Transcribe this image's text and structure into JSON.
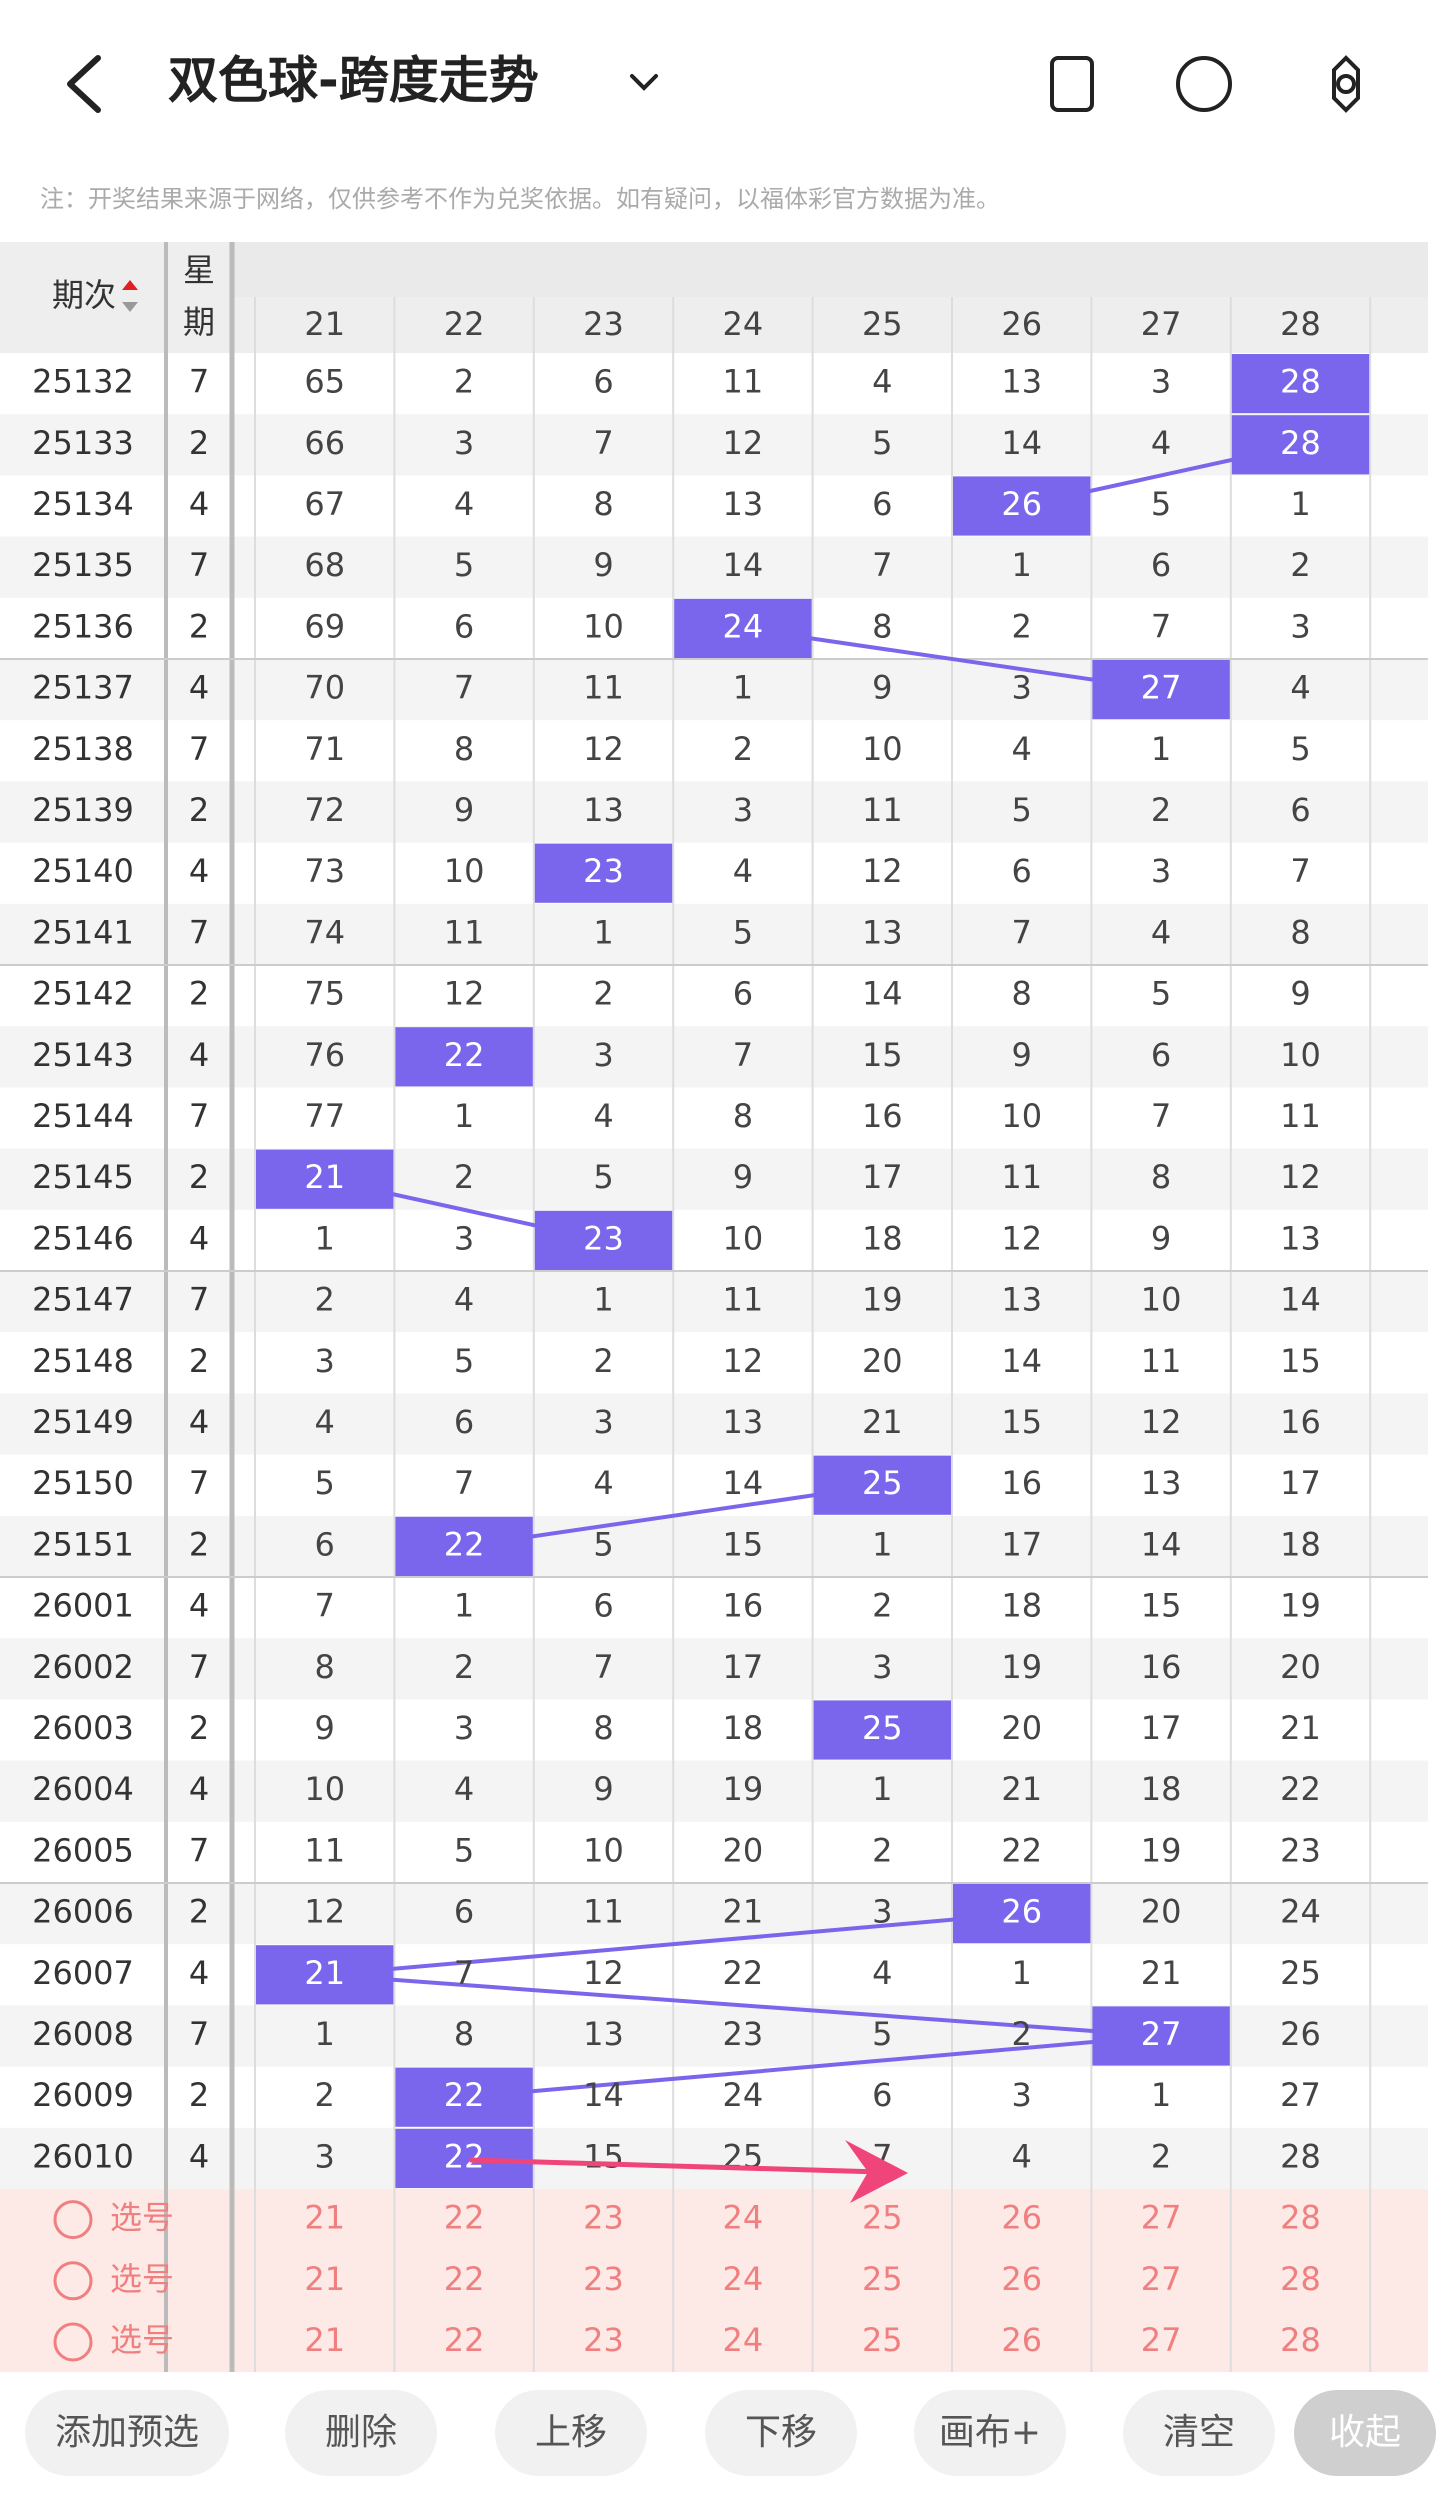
{
  "header": {
    "title": "双色球-跨度走势"
  },
  "note": "注：开奖结果来源于网络，仅供参考不作为兑奖依据。如有疑问，以福体彩官方数据为准。",
  "table": {
    "period_header": "期次",
    "weekday_header": [
      "星",
      "期"
    ],
    "columns": [
      21,
      22,
      23,
      24,
      25,
      26,
      27,
      28
    ],
    "rows": [
      {
        "period": 25132,
        "weekday": 7,
        "cells": [
          65,
          2,
          6,
          11,
          4,
          13,
          3,
          28
        ]
      },
      {
        "period": 25133,
        "weekday": 2,
        "cells": [
          66,
          3,
          7,
          12,
          5,
          14,
          4,
          28
        ]
      },
      {
        "period": 25134,
        "weekday": 4,
        "cells": [
          67,
          4,
          8,
          13,
          6,
          26,
          5,
          1
        ]
      },
      {
        "period": 25135,
        "weekday": 7,
        "cells": [
          68,
          5,
          9,
          14,
          7,
          1,
          6,
          2
        ]
      },
      {
        "period": 25136,
        "weekday": 2,
        "cells": [
          69,
          6,
          10,
          24,
          8,
          2,
          7,
          3
        ]
      },
      {
        "period": 25137,
        "weekday": 4,
        "cells": [
          70,
          7,
          11,
          1,
          9,
          3,
          27,
          4
        ]
      },
      {
        "period": 25138,
        "weekday": 7,
        "cells": [
          71,
          8,
          12,
          2,
          10,
          4,
          1,
          5
        ]
      },
      {
        "period": 25139,
        "weekday": 2,
        "cells": [
          72,
          9,
          13,
          3,
          11,
          5,
          2,
          6
        ]
      },
      {
        "period": 25140,
        "weekday": 4,
        "cells": [
          73,
          10,
          23,
          4,
          12,
          6,
          3,
          7
        ]
      },
      {
        "period": 25141,
        "weekday": 7,
        "cells": [
          74,
          11,
          1,
          5,
          13,
          7,
          4,
          8
        ]
      },
      {
        "period": 25142,
        "weekday": 2,
        "cells": [
          75,
          12,
          2,
          6,
          14,
          8,
          5,
          9
        ]
      },
      {
        "period": 25143,
        "weekday": 4,
        "cells": [
          76,
          22,
          3,
          7,
          15,
          9,
          6,
          10
        ]
      },
      {
        "period": 25144,
        "weekday": 7,
        "cells": [
          77,
          1,
          4,
          8,
          16,
          10,
          7,
          11
        ]
      },
      {
        "period": 25145,
        "weekday": 2,
        "cells": [
          21,
          2,
          5,
          9,
          17,
          11,
          8,
          12
        ]
      },
      {
        "period": 25146,
        "weekday": 4,
        "cells": [
          1,
          3,
          23,
          10,
          18,
          12,
          9,
          13
        ]
      },
      {
        "period": 25147,
        "weekday": 7,
        "cells": [
          2,
          4,
          1,
          11,
          19,
          13,
          10,
          14
        ]
      },
      {
        "period": 25148,
        "weekday": 2,
        "cells": [
          3,
          5,
          2,
          12,
          20,
          14,
          11,
          15
        ]
      },
      {
        "period": 25149,
        "weekday": 4,
        "cells": [
          4,
          6,
          3,
          13,
          21,
          15,
          12,
          16
        ]
      },
      {
        "period": 25150,
        "weekday": 7,
        "cells": [
          5,
          7,
          4,
          14,
          25,
          16,
          13,
          17
        ]
      },
      {
        "period": 25151,
        "weekday": 2,
        "cells": [
          6,
          22,
          5,
          15,
          1,
          17,
          14,
          18
        ]
      },
      {
        "period": 26001,
        "weekday": 4,
        "cells": [
          7,
          1,
          6,
          16,
          2,
          18,
          15,
          19
        ]
      },
      {
        "period": 26002,
        "weekday": 7,
        "cells": [
          8,
          2,
          7,
          17,
          3,
          19,
          16,
          20
        ]
      },
      {
        "period": 26003,
        "weekday": 2,
        "cells": [
          9,
          3,
          8,
          18,
          25,
          20,
          17,
          21
        ]
      },
      {
        "period": 26004,
        "weekday": 4,
        "cells": [
          10,
          4,
          9,
          19,
          1,
          21,
          18,
          22
        ]
      },
      {
        "period": 26005,
        "weekday": 7,
        "cells": [
          11,
          5,
          10,
          20,
          2,
          22,
          19,
          23
        ]
      },
      {
        "period": 26006,
        "weekday": 2,
        "cells": [
          12,
          6,
          11,
          21,
          3,
          26,
          20,
          24
        ]
      },
      {
        "period": 26007,
        "weekday": 4,
        "cells": [
          21,
          7,
          12,
          22,
          4,
          1,
          21,
          25
        ]
      },
      {
        "period": 26008,
        "weekday": 7,
        "cells": [
          1,
          8,
          13,
          23,
          5,
          2,
          27,
          26
        ]
      },
      {
        "period": 26009,
        "weekday": 2,
        "cells": [
          2,
          22,
          14,
          24,
          6,
          3,
          1,
          27
        ]
      },
      {
        "period": 26010,
        "weekday": 4,
        "cells": [
          3,
          22,
          15,
          25,
          7,
          4,
          2,
          28
        ]
      }
    ]
  },
  "select_label": "选号",
  "buttons": [
    "添加预选",
    "删除",
    "上移",
    "下移",
    "画布+",
    "清空",
    "收起"
  ]
}
